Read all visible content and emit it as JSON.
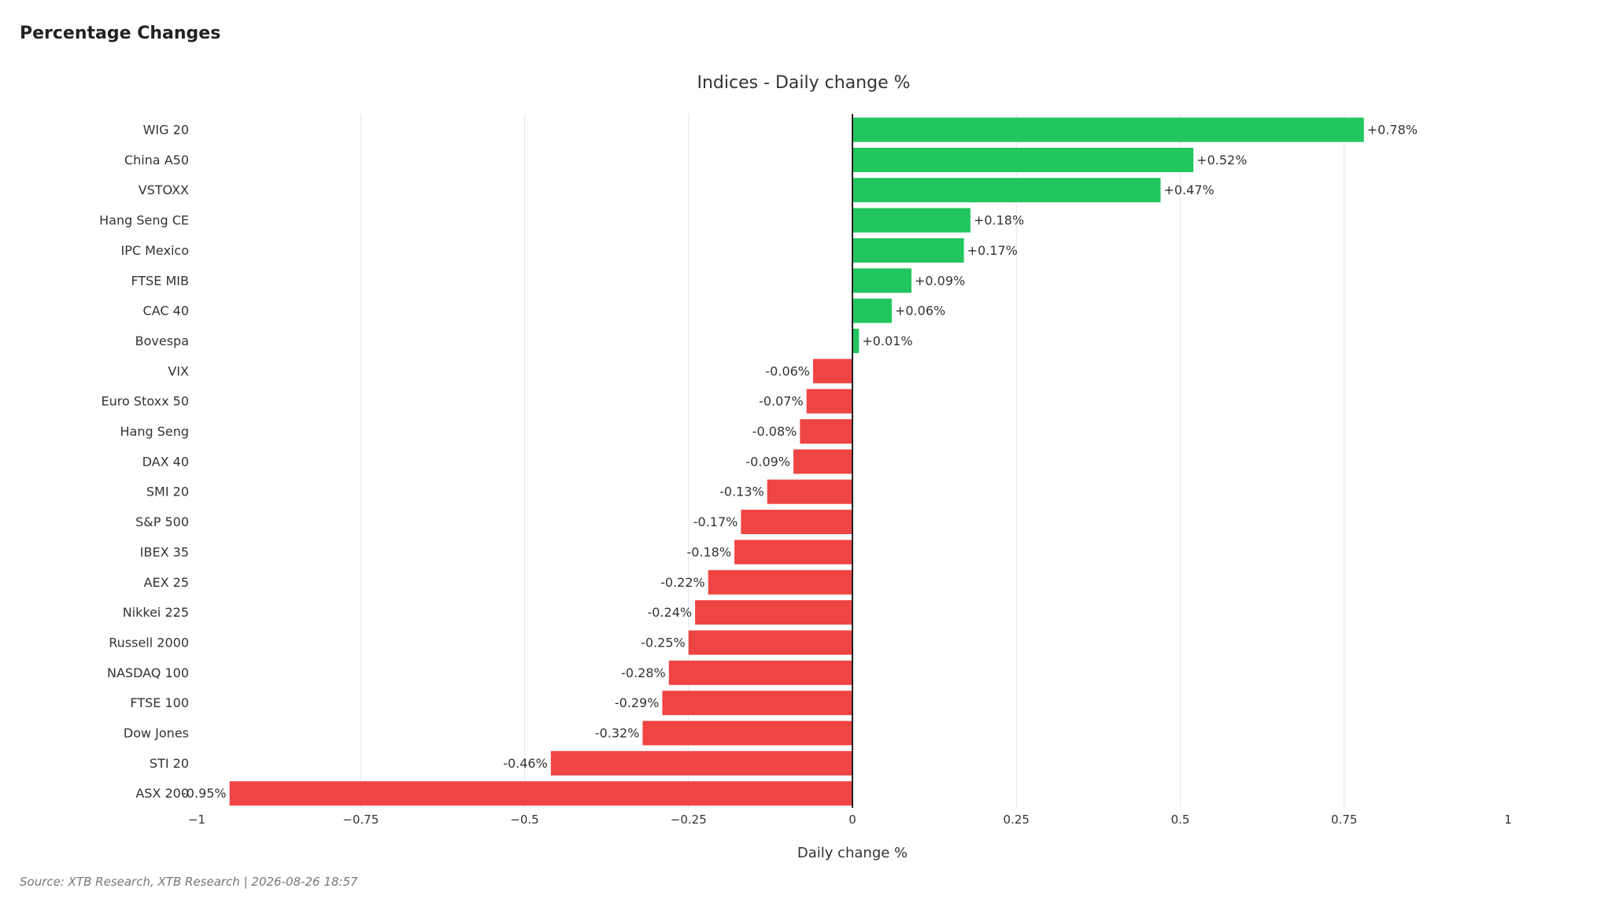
{
  "page": {
    "title": "Percentage Changes",
    "source": "Source: XTB Research, XTB Research | 2026-08-26 18:57"
  },
  "colors": {
    "positive": "#22c55e",
    "negative": "#ef4444",
    "grid": "#e6e6e6",
    "zero_line": "#222222"
  },
  "chart_data": {
    "type": "bar",
    "orientation": "horizontal",
    "title": "Indices - Daily change %",
    "xlabel": "Daily change %",
    "ylabel": "",
    "xlim": [
      -1,
      1
    ],
    "x_ticks": [
      -1,
      -0.75,
      -0.5,
      -0.25,
      0,
      0.25,
      0.5,
      0.75,
      1
    ],
    "x_tick_labels": [
      "−1",
      "−0.75",
      "−0.5",
      "−0.25",
      "0",
      "0.25",
      "0.5",
      "0.75",
      "1"
    ],
    "grid": true,
    "legend": "none",
    "categories": [
      "WIG 20",
      "China A50",
      "VSTOXX",
      "Hang Seng CE",
      "IPC Mexico",
      "FTSE MIB",
      "CAC 40",
      "Bovespa",
      "VIX",
      "Euro Stoxx 50",
      "Hang Seng",
      "DAX 40",
      "SMI 20",
      "S&P 500",
      "IBEX 35",
      "AEX 25",
      "Nikkei 225",
      "Russell 2000",
      "NASDAQ 100",
      "FTSE 100",
      "Dow Jones",
      "STI 20",
      "ASX 200"
    ],
    "values": [
      0.78,
      0.52,
      0.47,
      0.18,
      0.17,
      0.09,
      0.06,
      0.01,
      -0.06,
      -0.07,
      -0.08,
      -0.09,
      -0.13,
      -0.17,
      -0.18,
      -0.22,
      -0.24,
      -0.25,
      -0.28,
      -0.29,
      -0.32,
      -0.46,
      -0.95
    ],
    "data_labels": [
      "+0.78%",
      "+0.52%",
      "+0.47%",
      "+0.18%",
      "+0.17%",
      "+0.09%",
      "+0.06%",
      "+0.01%",
      "-0.06%",
      "-0.07%",
      "-0.08%",
      "-0.09%",
      "-0.13%",
      "-0.17%",
      "-0.18%",
      "-0.22%",
      "-0.24%",
      "-0.25%",
      "-0.28%",
      "-0.29%",
      "-0.32%",
      "-0.46%",
      "-0.95%"
    ]
  }
}
